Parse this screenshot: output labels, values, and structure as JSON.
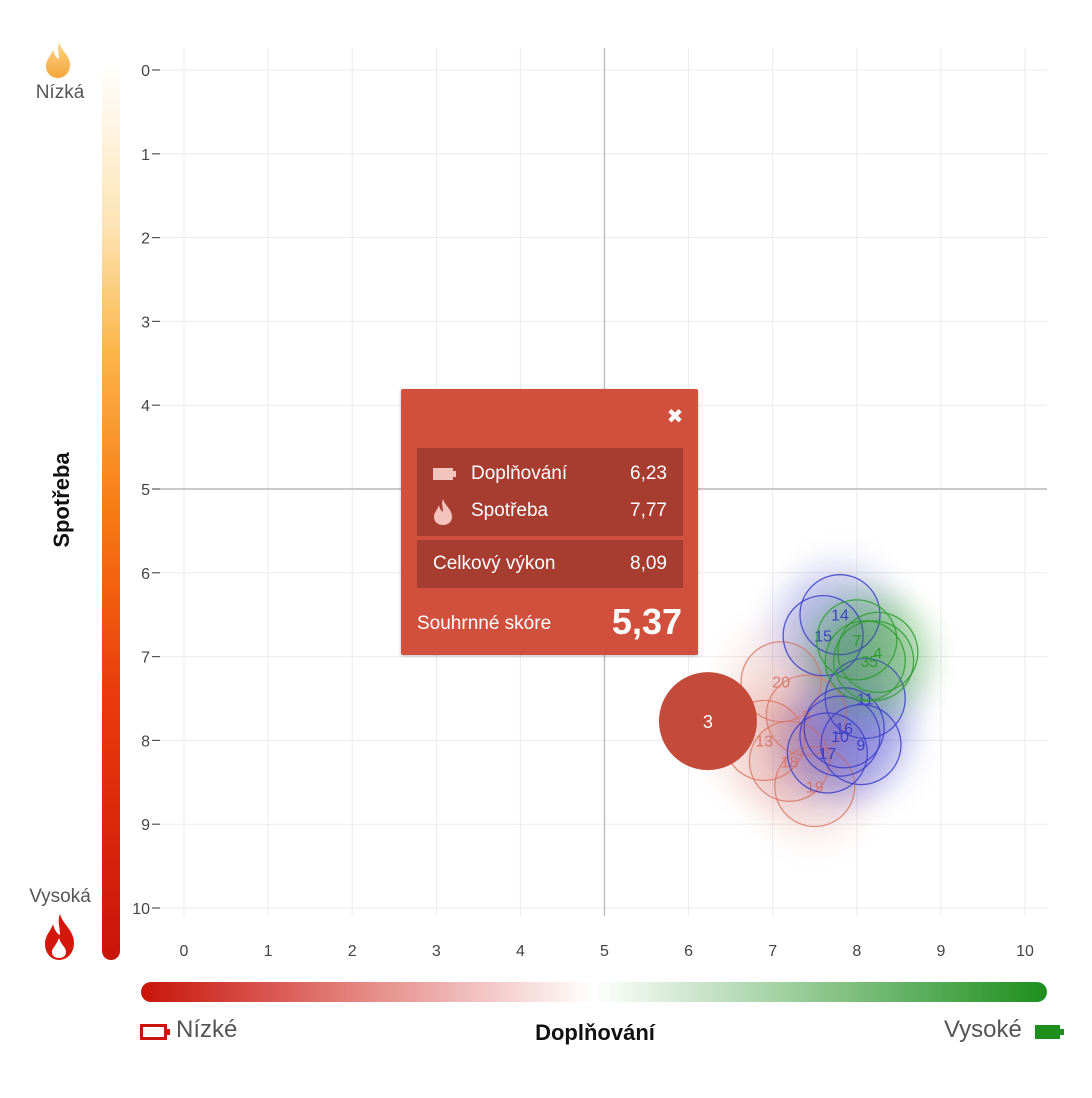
{
  "chart_data": {
    "type": "scatter",
    "xlabel": "Doplňování",
    "ylabel": "Spotřeba",
    "xlim": [
      0,
      10
    ],
    "ylim": [
      0,
      10
    ],
    "y_axis_reversed": true,
    "x_ticks": [
      "0",
      "1",
      "2",
      "3",
      "4",
      "5",
      "6",
      "7",
      "8",
      "9",
      "10"
    ],
    "y_ticks": [
      "0",
      "1",
      "2",
      "3",
      "4",
      "5",
      "6",
      "7",
      "8",
      "9",
      "10"
    ],
    "grid": true,
    "quadrant_lines": {
      "x": 5,
      "y": 5
    },
    "x_scale_low": "Nízké",
    "x_scale_high": "Vysoké",
    "y_scale_low": "Nízká",
    "y_scale_high": "Vysoká",
    "series": [
      {
        "color": "#d9796a",
        "points": [
          {
            "label": "20",
            "x": 7.1,
            "y": 7.3
          },
          {
            "label": "3",
            "x": 7.4,
            "y": 7.7
          },
          {
            "label": "13",
            "x": 6.9,
            "y": 8.0
          },
          {
            "label": "18",
            "x": 7.2,
            "y": 8.25
          },
          {
            "label": "19",
            "x": 7.5,
            "y": 8.55
          }
        ]
      },
      {
        "color": "#3d3dcc",
        "points": [
          {
            "label": "14",
            "x": 7.8,
            "y": 6.5
          },
          {
            "label": "15",
            "x": 7.6,
            "y": 6.75
          },
          {
            "label": "11",
            "x": 8.1,
            "y": 7.5
          },
          {
            "label": "16",
            "x": 7.85,
            "y": 7.85
          },
          {
            "label": "10",
            "x": 7.8,
            "y": 7.95
          },
          {
            "label": "9",
            "x": 8.05,
            "y": 8.05
          },
          {
            "label": "17",
            "x": 7.65,
            "y": 8.15
          }
        ]
      },
      {
        "color": "#2e9e2e",
        "points": [
          {
            "label": "7",
            "x": 8.0,
            "y": 6.8
          },
          {
            "label": "4",
            "x": 8.25,
            "y": 6.95
          },
          {
            "label": "5",
            "x": 8.2,
            "y": 7.05
          },
          {
            "label": "3",
            "x": 8.1,
            "y": 7.05
          }
        ]
      }
    ],
    "highlight": {
      "label": "3",
      "x": 6.23,
      "y": 7.77,
      "color": "#c44a3a"
    }
  },
  "tooltip": {
    "rows": [
      {
        "icon": "battery-icon",
        "label": "Doplňování",
        "value": "6,23"
      },
      {
        "icon": "flame-icon",
        "label": "Spotřeba",
        "value": "7,77"
      }
    ],
    "performance_label": "Celkový výkon",
    "performance_value": "8,09",
    "summary_label": "Souhrnné skóre",
    "summary_value": "5,37"
  },
  "colors": {
    "popup_bg": "#d14f3d",
    "popup_block": "#a73c30",
    "red": "#c9140a",
    "green": "#1d8f1d",
    "orange": "#f07a10",
    "yellow": "#fbc25a"
  }
}
